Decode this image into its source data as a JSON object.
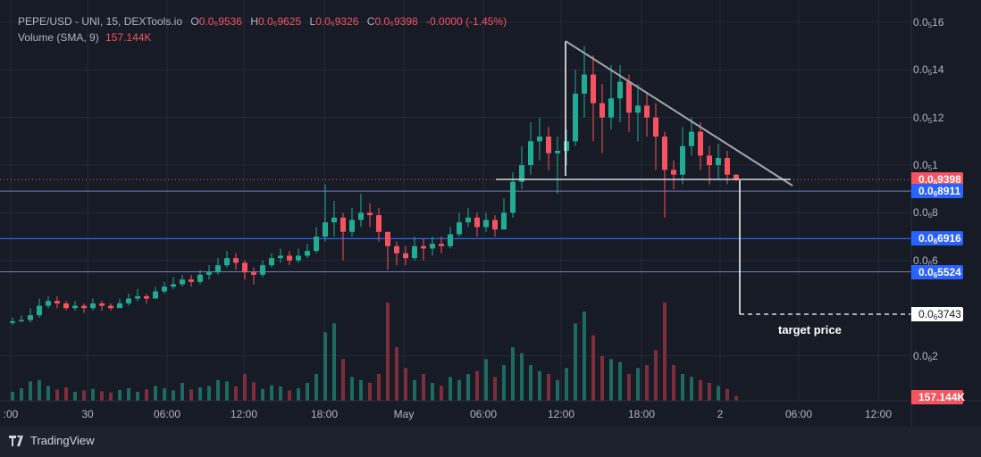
{
  "legend": {
    "symbol": "PEPE/USD - UNI, 15, DEXTools.io",
    "open_label": "O",
    "open": "0.0₆9536",
    "high_label": "H",
    "high": "0.0₆9625",
    "low_label": "L",
    "low": "0.0₆9326",
    "close_label": "C",
    "close": "0.0₆9398",
    "change": "-0.0000 (-1.45%)",
    "volume_label": "Volume (SMA, 9)",
    "volume_value": "157.144K"
  },
  "price_axis": [
    {
      "lead": "0.0",
      "sub": "5",
      "rest": "16",
      "value": 1.6e-06
    },
    {
      "lead": "0.0",
      "sub": "5",
      "rest": "14",
      "value": 1.4e-06
    },
    {
      "lead": "0.0",
      "sub": "5",
      "rest": "12",
      "value": 1.2e-06
    },
    {
      "lead": "0.0",
      "sub": "5",
      "rest": "1",
      "value": 1e-06
    },
    {
      "lead": "0.0",
      "sub": "6",
      "rest": "8",
      "value": 8e-07
    },
    {
      "lead": "0.0",
      "sub": "6",
      "rest": "6",
      "value": 6e-07
    },
    {
      "lead": "0.0",
      "sub": "6",
      "rest": "2",
      "value": 2e-07
    }
  ],
  "price_tags": [
    {
      "lead": "0.0",
      "sub": "6",
      "rest": "9398",
      "value": 9.398e-07,
      "bg": "#f7525f",
      "fg": "#ffffff",
      "name": "last-price-tag"
    },
    {
      "lead": "0.0",
      "sub": "6",
      "rest": "8911",
      "value": 8.911e-07,
      "bg": "#2962ff",
      "fg": "#ffffff",
      "name": "level-tag-8911"
    },
    {
      "lead": "0.0",
      "sub": "6",
      "rest": "6916",
      "value": 6.916e-07,
      "bg": "#2962ff",
      "fg": "#ffffff",
      "name": "level-tag-6916"
    },
    {
      "lead": "0.0",
      "sub": "6",
      "rest": "5524",
      "value": 5.524e-07,
      "bg": "#2962ff",
      "fg": "#ffffff",
      "name": "level-tag-5524"
    },
    {
      "lead": "0.0",
      "sub": "6",
      "rest": "3743",
      "value": 3.743e-07,
      "bg": "#ffffff",
      "fg": "#131722",
      "name": "target-price-tag"
    }
  ],
  "volume_tag": "157.144K",
  "time_axis": [
    ":00",
    "30",
    "06:00",
    "12:00",
    "18:00",
    "May",
    "06:00",
    "12:00",
    "18:00",
    "2",
    "06:00",
    "12:00"
  ],
  "annotations": {
    "target_label": "target price"
  },
  "brand": "TradingView",
  "colors": {
    "up": "#22ab94",
    "down": "#f7525f",
    "volume_up": "#1d6b60",
    "volume_down": "#7d2e3a",
    "level": "#2962ff",
    "background": "#171b26",
    "grid": "#252a37"
  },
  "chart_data": {
    "type": "candlestick",
    "title": "PEPE/USD - UNI, 15, DEXTools.io",
    "yaxis": {
      "min": 0,
      "max": 1.65e-06,
      "position": "right"
    },
    "grid": true,
    "close": [
      3.45e-07,
      3.5e-07,
      3.7e-07,
      4.1e-07,
      4.3e-07,
      4.2e-07,
      4e-07,
      4.1e-07,
      4e-07,
      4.2e-07,
      4.1e-07,
      4e-07,
      4.2e-07,
      4.4e-07,
      4.5e-07,
      4.4e-07,
      4.7e-07,
      4.9e-07,
      5e-07,
      5.2e-07,
      5.1e-07,
      5.4e-07,
      5.5e-07,
      5.8e-07,
      6.1e-07,
      5.9e-07,
      5.5e-07,
      5.4e-07,
      5.8e-07,
      6.1e-07,
      6.2e-07,
      6e-07,
      6.2e-07,
      6.4e-07,
      7e-07,
      7.6e-07,
      7.8e-07,
      7.2e-07,
      7.7e-07,
      8e-07,
      7.9e-07,
      7.2e-07,
      6.6e-07,
      6.3e-07,
      6.1e-07,
      6.6e-07,
      6.5e-07,
      6.7e-07,
      6.6e-07,
      7.1e-07,
      7.6e-07,
      7.8e-07,
      7.4e-07,
      7.7e-07,
      7.3e-07,
      8e-07,
      9.3e-07,
      1e-06,
      1.1e-06,
      1.12e-06,
      1.05e-06,
      1.06e-06,
      1.1e-06,
      1.3e-06,
      1.38e-06,
      1.26e-06,
      1.2e-06,
      1.28e-06,
      1.35e-06,
      1.22e-06,
      1.25e-06,
      1.2e-06,
      1.12e-06,
      9.8e-07,
      9.6e-07,
      1.08e-06,
      1.14e-06,
      1.04e-06,
      1e-06,
      1.03e-06,
      9.6e-07,
      9.398e-07
    ],
    "high": [
      3.6e-07,
      3.7e-07,
      4e-07,
      4.4e-07,
      4.5e-07,
      4.5e-07,
      4.3e-07,
      4.3e-07,
      4.2e-07,
      4.4e-07,
      4.3e-07,
      4.2e-07,
      4.4e-07,
      4.6e-07,
      4.8e-07,
      4.6e-07,
      4.9e-07,
      5.1e-07,
      5.3e-07,
      5.4e-07,
      5.4e-07,
      5.6e-07,
      5.8e-07,
      6.1e-07,
      6.4e-07,
      6.3e-07,
      6e-07,
      5.7e-07,
      6e-07,
      6.3e-07,
      6.5e-07,
      6.4e-07,
      6.5e-07,
      6.7e-07,
      7.4e-07,
      9.2e-07,
      8.5e-07,
      8e-07,
      8.2e-07,
      8.8e-07,
      8.4e-07,
      8.2e-07,
      7.2e-07,
      6.8e-07,
      6.6e-07,
      7e-07,
      6.9e-07,
      7e-07,
      7e-07,
      7.4e-07,
      8e-07,
      8.2e-07,
      8e-07,
      8e-07,
      7.9e-07,
      8.6e-07,
      9.7e-07,
      1.08e-06,
      1.18e-06,
      1.2e-06,
      1.16e-06,
      1.12e-06,
      1.15e-06,
      1.4e-06,
      1.5e-06,
      1.46e-06,
      1.34e-06,
      1.42e-06,
      1.42e-06,
      1.38e-06,
      1.34e-06,
      1.3e-06,
      1.26e-06,
      1.14e-06,
      1.02e-06,
      1.16e-06,
      1.2e-06,
      1.18e-06,
      1.08e-06,
      1.09e-06,
      1.06e-06,
      9.625e-07
    ],
    "low": [
      3.3e-07,
      3.4e-07,
      3.4e-07,
      3.6e-07,
      4e-07,
      4e-07,
      3.9e-07,
      3.9e-07,
      3.8e-07,
      3.9e-07,
      3.9e-07,
      3.9e-07,
      4e-07,
      4.1e-07,
      4.3e-07,
      4.2e-07,
      4.4e-07,
      4.6e-07,
      4.8e-07,
      4.9e-07,
      4.9e-07,
      5e-07,
      5.2e-07,
      5.4e-07,
      5.7e-07,
      5.6e-07,
      5.2e-07,
      5e-07,
      5.3e-07,
      5.7e-07,
      5.9e-07,
      5.8e-07,
      5.9e-07,
      6.1e-07,
      6.3e-07,
      6.8e-07,
      7e-07,
      6e-07,
      7e-07,
      7.4e-07,
      7.4e-07,
      6.8e-07,
      5.6e-07,
      5.8e-07,
      5.8e-07,
      6e-07,
      6e-07,
      6.2e-07,
      6.3e-07,
      6.5e-07,
      7e-07,
      7.4e-07,
      7e-07,
      7.2e-07,
      7e-07,
      7.5e-07,
      7.8e-07,
      9e-07,
      9.6e-07,
      1.02e-06,
      9.8e-07,
      8.8e-07,
      1e-06,
      1.08e-06,
      1.2e-06,
      1.1e-06,
      1.05e-06,
      1.15e-06,
      1.18e-06,
      1.14e-06,
      1.1e-06,
      1.12e-06,
      9.8e-07,
      7.8e-07,
      9e-07,
      9.2e-07,
      1.04e-06,
      9.8e-07,
      9.2e-07,
      9.4e-07,
      9.2e-07,
      9.326e-07
    ],
    "volume_k": [
      300,
      420,
      650,
      700,
      500,
      380,
      450,
      300,
      350,
      400,
      320,
      280,
      360,
      420,
      300,
      380,
      500,
      420,
      350,
      600,
      380,
      450,
      500,
      700,
      650,
      480,
      900,
      620,
      400,
      520,
      480,
      350,
      420,
      600,
      900,
      2300,
      2600,
      1400,
      800,
      700,
      600,
      900,
      3300,
      1800,
      1100,
      700,
      900,
      600,
      500,
      800,
      700,
      900,
      1000,
      1400,
      800,
      1200,
      1800,
      1600,
      1200,
      1000,
      900,
      700,
      1100,
      2600,
      3000,
      2200,
      1500,
      1400,
      1300,
      900,
      1100,
      1200,
      1700,
      3300,
      1200,
      900,
      800,
      700,
      600,
      500,
      400,
      157.144
    ]
  }
}
